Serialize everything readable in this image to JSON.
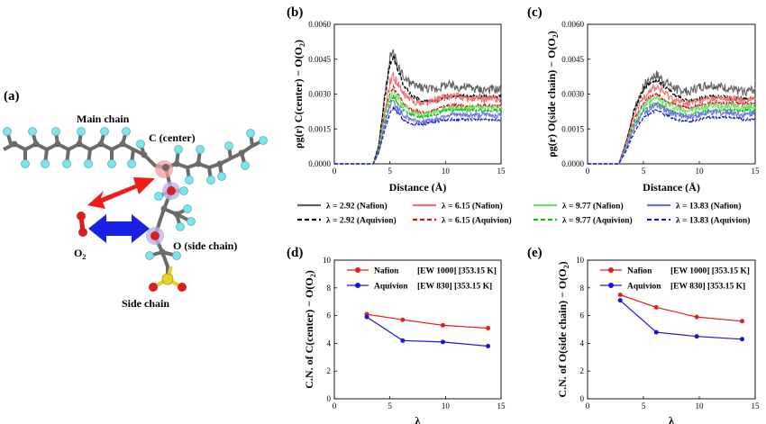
{
  "schematic": {
    "panel_label": "(a)",
    "main_chain": "Main chain",
    "c_center": "C (center)",
    "o_side": "O (side chain)",
    "o2": "O",
    "o2_sub": "2",
    "side_chain": "Side chain",
    "colors": {
      "carbon": "#6b6b6b",
      "fluorine": "#7fe3ea",
      "oxygen": "#d81e1e",
      "sulfur": "#e2d22a",
      "arrow_red": "#f01c1c",
      "arrow_blue": "#1a20e6"
    }
  },
  "rdf_legend": [
    {
      "label": "λ = 2.92 (Nafion)",
      "color": "#606060",
      "dash": false
    },
    {
      "label": "λ = 6.15 (Nafion)",
      "color": "#f07070",
      "dash": false
    },
    {
      "label": "λ = 9.77 (Nafion)",
      "color": "#6ae06a",
      "dash": false
    },
    {
      "label": "λ = 13.83 (Nafion)",
      "color": "#6b74e6",
      "dash": false
    },
    {
      "label": "λ = 2.92 (Aquivion)",
      "color": "#000000",
      "dash": true
    },
    {
      "label": "λ = 6.15 (Aquivion)",
      "color": "#e01010",
      "dash": true
    },
    {
      "label": "λ = 9.77 (Aquivion)",
      "color": "#12c012",
      "dash": true
    },
    {
      "label": "λ = 13.83 (Aquivion)",
      "color": "#1a1ad6",
      "dash": true
    }
  ],
  "chart_data": [
    {
      "panel": "(b)",
      "type": "line",
      "xlabel": "Distance (Å)",
      "ylabel": "ρg(r)  C(center) − O(O",
      "ylabel_sub": "2",
      "ylabel_end": ")",
      "xlim": [
        0,
        15
      ],
      "ylim": [
        0,
        0.006
      ],
      "xticks": [
        "0",
        "5",
        "10",
        "15"
      ],
      "yticks": [
        "0.0000",
        "0.0015",
        "0.0030",
        "0.0045",
        "0.0060"
      ],
      "series": [
        {
          "name": "λ = 2.92 (Nafion)",
          "x": [
            0,
            3.5,
            4.0,
            4.5,
            5.0,
            5.3,
            5.7,
            6.2,
            7.0,
            8.0,
            9.0,
            10.0,
            11.0,
            12.0,
            13.0,
            14.0,
            15.0
          ],
          "y": [
            0,
            0,
            0.0008,
            0.0028,
            0.0045,
            0.0047,
            0.0042,
            0.0037,
            0.0034,
            0.0033,
            0.0032,
            0.0034,
            0.0033,
            0.0033,
            0.0032,
            0.0032,
            0.0032
          ]
        },
        {
          "name": "λ = 2.92 (Aquivion)",
          "x": [
            0,
            3.5,
            4.0,
            4.5,
            5.0,
            5.3,
            5.7,
            6.2,
            7.0,
            8.0,
            9.0,
            10.0,
            11.0,
            12.0,
            13.0,
            14.0,
            15.0
          ],
          "y": [
            0,
            0,
            0.0008,
            0.0027,
            0.0043,
            0.0046,
            0.0041,
            0.0034,
            0.0029,
            0.0027,
            0.0027,
            0.0029,
            0.0029,
            0.0029,
            0.0029,
            0.0029,
            0.0029
          ]
        },
        {
          "name": "λ = 6.15 (Nafion)",
          "x": [
            0,
            3.5,
            4.0,
            4.5,
            5.0,
            5.3,
            5.7,
            6.2,
            7.0,
            8.0,
            9.0,
            10.0,
            11.0,
            12.0,
            13.0,
            14.0,
            15.0
          ],
          "y": [
            0,
            0,
            0.0006,
            0.0022,
            0.0035,
            0.0038,
            0.0034,
            0.003,
            0.0027,
            0.0026,
            0.0027,
            0.0029,
            0.0029,
            0.0028,
            0.0028,
            0.0028,
            0.0028
          ]
        },
        {
          "name": "λ = 6.15 (Aquivion)",
          "x": [
            0,
            3.5,
            4.0,
            4.5,
            5.0,
            5.3,
            5.7,
            6.2,
            7.0,
            8.0,
            9.0,
            10.0,
            11.0,
            12.0,
            13.0,
            14.0,
            15.0
          ],
          "y": [
            0,
            0,
            0.0006,
            0.002,
            0.0031,
            0.0033,
            0.003,
            0.0026,
            0.0023,
            0.0022,
            0.0023,
            0.0025,
            0.0025,
            0.0025,
            0.0025,
            0.0025,
            0.0025
          ]
        },
        {
          "name": "λ = 9.77 (Nafion)",
          "x": [
            0,
            3.5,
            4.0,
            4.5,
            5.0,
            5.3,
            5.7,
            6.2,
            7.0,
            8.0,
            9.0,
            10.0,
            11.0,
            12.0,
            13.0,
            14.0,
            15.0
          ],
          "y": [
            0,
            0,
            0.0006,
            0.0019,
            0.0029,
            0.0031,
            0.0028,
            0.0025,
            0.0022,
            0.0021,
            0.0022,
            0.0024,
            0.0024,
            0.0024,
            0.0024,
            0.0024,
            0.0024
          ]
        },
        {
          "name": "λ = 9.77 (Aquivion)",
          "x": [
            0,
            3.5,
            4.0,
            4.5,
            5.0,
            5.3,
            5.7,
            6.2,
            7.0,
            8.0,
            9.0,
            10.0,
            11.0,
            12.0,
            13.0,
            14.0,
            15.0
          ],
          "y": [
            0,
            0,
            0.0005,
            0.0017,
            0.0027,
            0.0029,
            0.0026,
            0.0023,
            0.0021,
            0.002,
            0.0021,
            0.0023,
            0.0023,
            0.0023,
            0.0023,
            0.0023,
            0.0023
          ]
        },
        {
          "name": "λ = 13.83 (Nafion)",
          "x": [
            0,
            3.5,
            4.0,
            4.5,
            5.0,
            5.3,
            5.7,
            6.2,
            7.0,
            8.0,
            9.0,
            10.0,
            11.0,
            12.0,
            13.0,
            14.0,
            15.0
          ],
          "y": [
            0,
            0,
            0.0005,
            0.0016,
            0.0025,
            0.0027,
            0.0024,
            0.0021,
            0.0019,
            0.0018,
            0.0019,
            0.0021,
            0.0021,
            0.0021,
            0.0021,
            0.0021,
            0.0021
          ]
        },
        {
          "name": "λ = 13.83 (Aquivion)",
          "x": [
            0,
            3.5,
            4.0,
            4.5,
            5.0,
            5.3,
            5.7,
            6.2,
            7.0,
            8.0,
            9.0,
            10.0,
            11.0,
            12.0,
            13.0,
            14.0,
            15.0
          ],
          "y": [
            0,
            0,
            0.0005,
            0.0014,
            0.0022,
            0.0024,
            0.0022,
            0.0019,
            0.0017,
            0.0017,
            0.0018,
            0.0019,
            0.0019,
            0.0019,
            0.0019,
            0.0019,
            0.0019
          ]
        }
      ]
    },
    {
      "panel": "(c)",
      "type": "line",
      "xlabel": "Distance (Å)",
      "ylabel": "ρg(r)  O(side chain) − O(O",
      "ylabel_sub": "2",
      "ylabel_end": ")",
      "xlim": [
        0,
        15
      ],
      "ylim": [
        0,
        0.006
      ],
      "xticks": [
        "0",
        "5",
        "10",
        "15"
      ],
      "yticks": [
        "0.0000",
        "0.0015",
        "0.0030",
        "0.0045",
        "0.0060"
      ],
      "series": [
        {
          "name": "λ = 2.92 (Nafion)",
          "x": [
            0,
            2.8,
            3.5,
            4.2,
            5.0,
            5.6,
            6.2,
            7.0,
            8.0,
            9.0,
            10.0,
            11.0,
            12.0,
            13.0,
            14.0,
            15.0
          ],
          "y": [
            0,
            0,
            0.001,
            0.0024,
            0.0033,
            0.0037,
            0.0038,
            0.0035,
            0.0032,
            0.0031,
            0.0033,
            0.0034,
            0.0033,
            0.0032,
            0.0031,
            0.0032
          ]
        },
        {
          "name": "λ = 2.92 (Aquivion)",
          "x": [
            0,
            2.8,
            3.5,
            4.2,
            5.0,
            5.6,
            6.2,
            7.0,
            8.0,
            9.0,
            10.0,
            11.0,
            12.0,
            13.0,
            14.0,
            15.0
          ],
          "y": [
            0,
            0,
            0.001,
            0.0023,
            0.0032,
            0.0035,
            0.0036,
            0.0033,
            0.0029,
            0.0027,
            0.0028,
            0.0029,
            0.0029,
            0.0028,
            0.0028,
            0.0028
          ]
        },
        {
          "name": "λ = 6.15 (Nafion)",
          "x": [
            0,
            2.8,
            3.5,
            4.2,
            5.0,
            5.6,
            6.2,
            7.0,
            8.0,
            9.0,
            10.0,
            11.0,
            12.0,
            13.0,
            14.0,
            15.0
          ],
          "y": [
            0,
            0,
            0.0009,
            0.0021,
            0.0029,
            0.0032,
            0.0033,
            0.003,
            0.0027,
            0.0026,
            0.0027,
            0.0028,
            0.0028,
            0.0028,
            0.0027,
            0.0028
          ]
        },
        {
          "name": "λ = 6.15 (Aquivion)",
          "x": [
            0,
            2.8,
            3.5,
            4.2,
            5.0,
            5.6,
            6.2,
            7.0,
            8.0,
            9.0,
            10.0,
            11.0,
            12.0,
            13.0,
            14.0,
            15.0
          ],
          "y": [
            0,
            0,
            0.0008,
            0.0019,
            0.0026,
            0.0029,
            0.003,
            0.0027,
            0.0025,
            0.0024,
            0.0025,
            0.0026,
            0.0026,
            0.0026,
            0.0026,
            0.0026
          ]
        },
        {
          "name": "λ = 9.77 (Nafion)",
          "x": [
            0,
            2.8,
            3.5,
            4.2,
            5.0,
            5.6,
            6.2,
            7.0,
            8.0,
            9.0,
            10.0,
            11.0,
            12.0,
            13.0,
            14.0,
            15.0
          ],
          "y": [
            0,
            0,
            0.0008,
            0.0018,
            0.0025,
            0.0027,
            0.0028,
            0.0026,
            0.0024,
            0.0023,
            0.0024,
            0.0025,
            0.0025,
            0.0025,
            0.0024,
            0.0025
          ]
        },
        {
          "name": "λ = 9.77 (Aquivion)",
          "x": [
            0,
            2.8,
            3.5,
            4.2,
            5.0,
            5.6,
            6.2,
            7.0,
            8.0,
            9.0,
            10.0,
            11.0,
            12.0,
            13.0,
            14.0,
            15.0
          ],
          "y": [
            0,
            0,
            0.0007,
            0.0017,
            0.0023,
            0.0025,
            0.0026,
            0.0024,
            0.0022,
            0.0021,
            0.0022,
            0.0023,
            0.0023,
            0.0023,
            0.0023,
            0.0023
          ]
        },
        {
          "name": "λ = 13.83 (Nafion)",
          "x": [
            0,
            2.8,
            3.5,
            4.2,
            5.0,
            5.6,
            6.2,
            7.0,
            8.0,
            9.0,
            10.0,
            11.0,
            12.0,
            13.0,
            14.0,
            15.0
          ],
          "y": [
            0,
            0,
            0.0007,
            0.0016,
            0.0022,
            0.0024,
            0.0025,
            0.0023,
            0.0021,
            0.002,
            0.0021,
            0.0022,
            0.0022,
            0.0022,
            0.0021,
            0.0022
          ]
        },
        {
          "name": "λ = 13.83 (Aquivion)",
          "x": [
            0,
            2.8,
            3.5,
            4.2,
            5.0,
            5.6,
            6.2,
            7.0,
            8.0,
            9.0,
            10.0,
            11.0,
            12.0,
            13.0,
            14.0,
            15.0
          ],
          "y": [
            0,
            0,
            0.0006,
            0.0014,
            0.002,
            0.0022,
            0.0023,
            0.0021,
            0.0019,
            0.0018,
            0.0019,
            0.002,
            0.002,
            0.002,
            0.0019,
            0.0019
          ]
        }
      ]
    },
    {
      "panel": "(d)",
      "type": "line",
      "xlabel": "λ",
      "ylabel": "C.N. of C(center) − O(O",
      "ylabel_sub": "2",
      "ylabel_end": ")",
      "xlim": [
        0,
        15
      ],
      "ylim": [
        0,
        10
      ],
      "xticks": [
        "0",
        "5",
        "10",
        "15"
      ],
      "yticks": [
        "0",
        "2",
        "4",
        "6",
        "8",
        "10"
      ],
      "series": [
        {
          "name": "Nafion",
          "legend_label": "Nafion",
          "legend_info": "[EW 1000]  [353.15 K]",
          "color": "#e51d1d",
          "x": [
            2.92,
            6.15,
            9.77,
            13.83
          ],
          "y": [
            6.1,
            5.7,
            5.3,
            5.1
          ]
        },
        {
          "name": "Aquivion",
          "legend_label": "Aquivion",
          "legend_info": "[EW 830]   [353.15 K]",
          "color": "#1717d8",
          "x": [
            2.92,
            6.15,
            9.77,
            13.83
          ],
          "y": [
            5.9,
            4.2,
            4.1,
            3.8
          ]
        }
      ]
    },
    {
      "panel": "(e)",
      "type": "line",
      "xlabel": "λ",
      "ylabel": "C.N. of O(side chain) − O(O",
      "ylabel_sub": "2",
      "ylabel_end": ")",
      "xlim": [
        0,
        15
      ],
      "ylim": [
        0,
        10
      ],
      "xticks": [
        "0",
        "5",
        "10",
        "15"
      ],
      "yticks": [
        "0",
        "2",
        "4",
        "6",
        "8",
        "10"
      ],
      "series": [
        {
          "name": "Nafion",
          "legend_label": "Nafion",
          "legend_info": "[EW 1000]  [353.15 K]",
          "color": "#e51d1d",
          "x": [
            2.92,
            6.15,
            9.77,
            13.83
          ],
          "y": [
            7.5,
            6.6,
            5.9,
            5.6
          ]
        },
        {
          "name": "Aquivion",
          "legend_label": "Aquivion",
          "legend_info": "[EW 830]   [353.15 K]",
          "color": "#1717d8",
          "x": [
            2.92,
            6.15,
            9.77,
            13.83
          ],
          "y": [
            7.1,
            4.8,
            4.5,
            4.3
          ]
        }
      ]
    }
  ]
}
